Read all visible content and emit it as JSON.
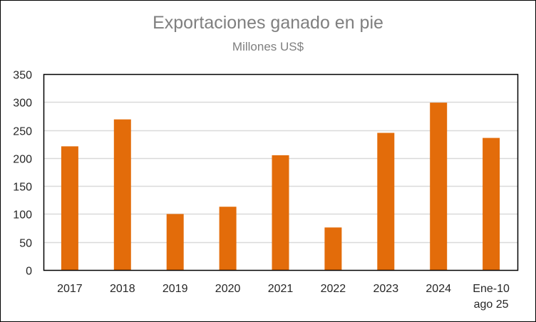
{
  "chart_data": {
    "type": "bar",
    "title": "Exportaciones ganado en pie",
    "subtitle": "Millones US$",
    "categories": [
      [
        "2017"
      ],
      [
        "2018"
      ],
      [
        "2019"
      ],
      [
        "2020"
      ],
      [
        "2021"
      ],
      [
        "2022"
      ],
      [
        "2023"
      ],
      [
        "2024"
      ],
      [
        "Ene-10",
        "ago 25"
      ]
    ],
    "values": [
      221,
      269,
      100,
      113,
      205,
      76,
      245,
      299,
      236
    ],
    "ylim": [
      0,
      350
    ],
    "yticks": [
      0,
      50,
      100,
      150,
      200,
      250,
      300,
      350
    ],
    "grid": true,
    "legend": "none",
    "bar_color": "#E36C0A",
    "grid_color": "#D9D9D9",
    "axis_color": "#000000"
  }
}
